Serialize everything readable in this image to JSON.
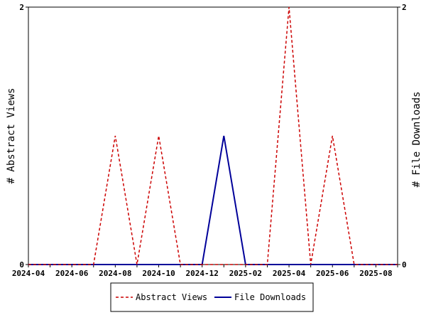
{
  "chart_data": {
    "type": "line",
    "title": "",
    "x_tick_labels": [
      "2024-04",
      "2024-06",
      "2024-08",
      "2024-10",
      "2024-12",
      "2025-02",
      "2025-04",
      "2025-06",
      "2025-08"
    ],
    "x_ticks_minor_months": [
      "2024-04",
      "2024-05",
      "2024-06",
      "2024-07",
      "2024-08",
      "2024-09",
      "2024-10",
      "2024-11",
      "2024-12",
      "2025-01",
      "2025-02",
      "2025-03",
      "2025-04",
      "2025-05",
      "2025-06",
      "2025-07",
      "2025-08",
      "2025-09"
    ],
    "x_range": [
      "2024-04",
      "2025-09"
    ],
    "ylabel_left": "# Abstract Views",
    "ylabel_right": "# File Downloads",
    "ylim_left": [
      0,
      2
    ],
    "ylim_right": [
      0,
      2
    ],
    "y_ticks_left": [
      "0",
      "2"
    ],
    "y_ticks_right": [
      "0",
      "2"
    ],
    "grid": false,
    "legend_position": "bottom",
    "series": [
      {
        "name": "Abstract Views",
        "axis": "left",
        "color": "#cc0000",
        "dash": "dashed",
        "x": [
          "2024-04",
          "2024-05",
          "2024-06",
          "2024-07",
          "2024-08",
          "2024-09",
          "2024-10",
          "2024-11",
          "2024-12",
          "2025-01",
          "2025-02",
          "2025-03",
          "2025-04",
          "2025-05",
          "2025-06",
          "2025-07",
          "2025-08",
          "2025-09"
        ],
        "values": [
          0,
          0,
          0,
          0,
          1,
          0,
          1,
          0,
          0,
          0,
          0,
          0,
          2,
          0,
          1,
          0,
          0,
          0
        ]
      },
      {
        "name": "File Downloads",
        "axis": "right",
        "color": "#000099",
        "dash": "solid",
        "x": [
          "2024-04",
          "2024-05",
          "2024-06",
          "2024-07",
          "2024-08",
          "2024-09",
          "2024-10",
          "2024-11",
          "2024-12",
          "2025-01",
          "2025-02",
          "2025-03",
          "2025-04",
          "2025-05",
          "2025-06",
          "2025-07",
          "2025-08",
          "2025-09"
        ],
        "values": [
          0,
          0,
          0,
          0,
          0,
          0,
          0,
          0,
          0,
          1,
          0,
          0,
          0,
          0,
          0,
          0,
          0,
          0
        ]
      }
    ]
  }
}
